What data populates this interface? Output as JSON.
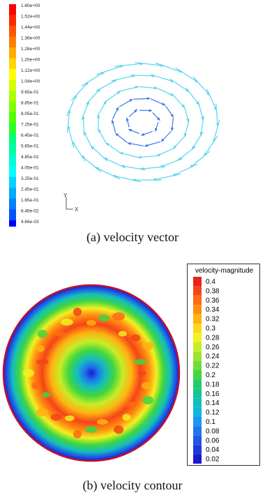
{
  "figure_a": {
    "caption": "(a)  velocity vector",
    "scale_labels": [
      "1.60e+00",
      "1.52e+00",
      "1.44e+00",
      "1.36e+00",
      "1.28e+00",
      "1.20e+00",
      "1.12e+00",
      "1.04e+00",
      "9.65e-01",
      "8.85e-01",
      "8.05e-01",
      "7.25e-01",
      "6.45e-01",
      "5.65e-01",
      "4.85e-01",
      "4.05e-01",
      "3.25e-01",
      "2.45e-01",
      "1.65e-01",
      "8.46e-02",
      "4.66e-03"
    ],
    "scale_colors": [
      "#ff0000",
      "#ff2a00",
      "#ff5500",
      "#ff7f00",
      "#ffaa00",
      "#ffd400",
      "#ffff00",
      "#d4ff00",
      "#aaff00",
      "#7fff00",
      "#55ff00",
      "#2aff2a",
      "#00ff7f",
      "#00ffaa",
      "#00ffd4",
      "#00ffff",
      "#00d4ff",
      "#00aaff",
      "#007fff",
      "#0055ff",
      "#0000ff"
    ],
    "axis_labels": {
      "y": "Y",
      "x": "X"
    },
    "vector_color": "#55d4ee",
    "vector_color_inner": "#3a78e8"
  },
  "figure_b": {
    "caption": "(b)  velocity contour",
    "legend_title": "velocity-magnitude",
    "legend_labels": [
      "0.4",
      "0.38",
      "0.36",
      "0.34",
      "0.32",
      "0.3",
      "0.28",
      "0.26",
      "0.24",
      "0.22",
      "0.2",
      "0.18",
      "0.16",
      "0.14",
      "0.12",
      "0.1",
      "0.08",
      "0.06",
      "0.04",
      "0.02"
    ],
    "legend_colors": [
      "#e8221a",
      "#f54418",
      "#ff6a12",
      "#ff8e10",
      "#ffb212",
      "#ffd61a",
      "#f2f020",
      "#c8ec26",
      "#9ee42e",
      "#6ede36",
      "#40d640",
      "#22cc6a",
      "#18c496",
      "#14bcc0",
      "#12b4e2",
      "#1a98f0",
      "#1e76ec",
      "#1e56e6",
      "#1c38dc",
      "#1a1ace"
    ]
  }
}
